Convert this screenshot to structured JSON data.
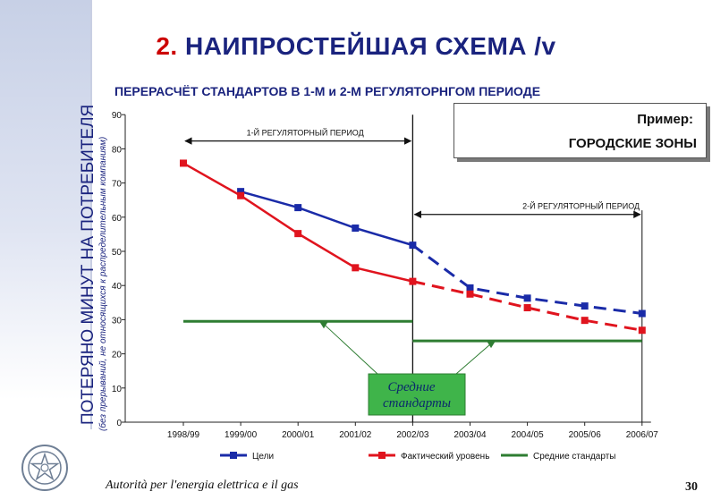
{
  "header": {
    "title_number": "2.",
    "title_text": "НАИПРОСТЕЙШАЯ СХЕМА /v",
    "subtitle": "ПЕРЕРАСЧЁТ СТАНДАРТОВ В 1-М и 2-М РЕГУЛЯТОРНГОМ ПЕРИОДЕ"
  },
  "sidebar": {
    "vertical_title": "ПОТЕРЯНО МИНУТ НА ПОТРЕБИТЕЛЯ",
    "vertical_subtitle": "(без прерываний, не относящихся к распределительным компаниям)"
  },
  "example_box": {
    "title": "Пример:",
    "subtitle": "ГОРОДСКИЕ ЗОНЫ"
  },
  "footer": {
    "authority": "Autorità per l'energia elettrica e il gas",
    "page_number": "30"
  },
  "colors": {
    "targets": "#1a2ba8",
    "actual": "#e0141e",
    "average": "#2e7d32",
    "text_dark": "#1a237e"
  },
  "chart_data": {
    "type": "line",
    "categories": [
      "1998/99",
      "1999/00",
      "2000/01",
      "2001/02",
      "2002/03",
      "2003/04",
      "2004/05",
      "2005/06",
      "2006/07"
    ],
    "y_ticks": [
      0,
      10,
      20,
      30,
      40,
      50,
      60,
      70,
      80,
      90
    ],
    "ylim": [
      0,
      90
    ],
    "grid": false,
    "legend_position": "bottom",
    "series": [
      {
        "name": "Цели",
        "values": [
          null,
          67.5,
          62.8,
          56.8,
          51.8,
          39.3,
          36.3,
          34.0,
          31.8
        ],
        "dashed_from_index": 4
      },
      {
        "name": "Фактический уровень",
        "values": [
          75.8,
          66.3,
          55.2,
          45.2,
          41.2,
          37.5,
          33.5,
          29.8,
          26.9
        ],
        "dashed_from_index": 4
      },
      {
        "name": "Средние стандарты",
        "segments": [
          {
            "from": 0,
            "to": 4,
            "value": 29.5
          },
          {
            "from": 4,
            "to": 8,
            "value": 23.8
          }
        ]
      }
    ],
    "periods": [
      {
        "label": "1-Й РЕГУЛЯТОРНЫЙ ПЕРИОД",
        "from": 0,
        "to": 4
      },
      {
        "label": "2-Й РЕГУЛЯТОРНЫЙ ПЕРИОД",
        "from": 4,
        "to": 8
      }
    ],
    "callout": {
      "line1": "Средние",
      "line2": "стандарты"
    }
  }
}
